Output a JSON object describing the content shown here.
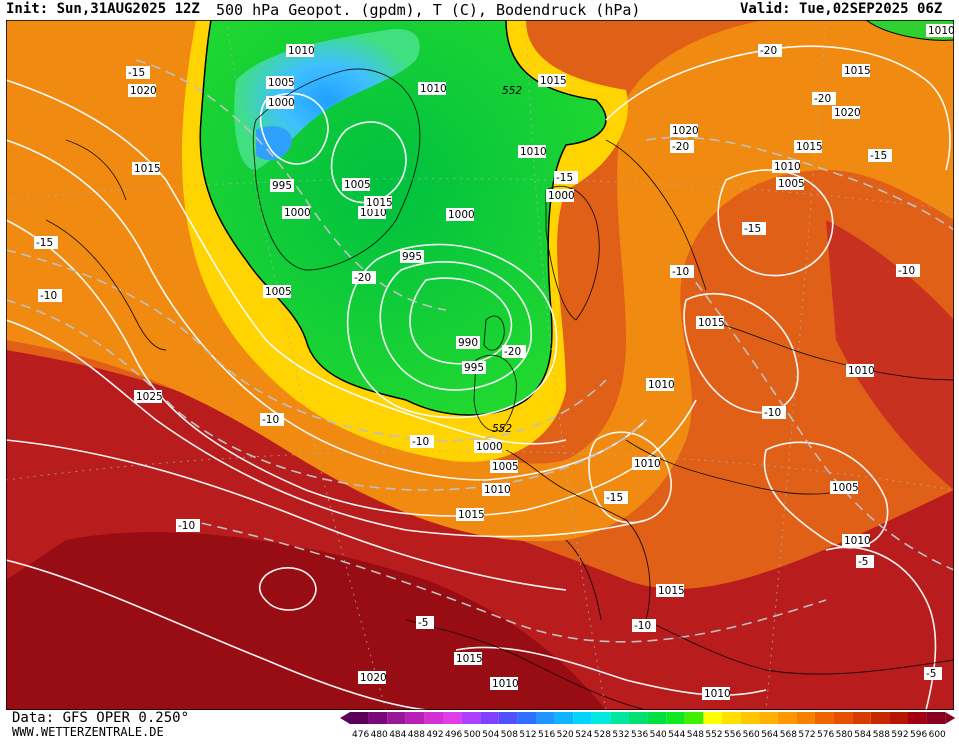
{
  "header": {
    "init": "Init: Sun,31AUG2025 12Z",
    "product": "500 hPa Geopot. (gpdm), T (C), Bodendruck (hPa)",
    "valid": "Valid: Tue,02SEP2025 06Z"
  },
  "footer": {
    "data_source": "Data: GFS OPER 0.250°",
    "website": "WWW.WETTERZENTRALE.DE"
  },
  "legend": {
    "values": [
      "476",
      "480",
      "484",
      "488",
      "492",
      "496",
      "500",
      "504",
      "508",
      "512",
      "516",
      "520",
      "524",
      "528",
      "532",
      "536",
      "540",
      "544",
      "548",
      "552",
      "556",
      "560",
      "564",
      "568",
      "572",
      "576",
      "580",
      "584",
      "588",
      "592",
      "596",
      "600"
    ],
    "colors": [
      "#5a005a",
      "#7a0a7a",
      "#99189a",
      "#b820b8",
      "#d230d2",
      "#e03ce8",
      "#b040ff",
      "#8040ff",
      "#5050ff",
      "#3070ff",
      "#2094ff",
      "#10b4ff",
      "#00d4ff",
      "#00e8e0",
      "#00e8a0",
      "#00e070",
      "#00e040",
      "#10e820",
      "#40f000",
      "#ffff00",
      "#ffe000",
      "#ffc800",
      "#ffb000",
      "#ff9800",
      "#f88000",
      "#f06400",
      "#e85000",
      "#d83c00",
      "#c82800",
      "#b81400",
      "#a00010",
      "#880020"
    ]
  },
  "map": {
    "labels_iso_pressure": [
      "1010",
      "1005",
      "1000",
      "1010",
      "1015",
      "1020",
      "1015",
      "1005",
      "1000",
      "995",
      "1010",
      "1015",
      "1000",
      "995",
      "990",
      "995",
      "1010",
      "1000",
      "1005",
      "1010",
      "1015",
      "1020",
      "1015",
      "1010",
      "1005",
      "1015",
      "1010",
      "1010",
      "1005",
      "1010",
      "1010",
      "1015",
      "1015",
      "1020",
      "1015",
      "1010",
      "1010",
      "1025",
      "1005",
      "1000",
      "1020",
      "1015",
      "1010"
    ],
    "labels_temp": [
      "-15",
      "-20",
      "-15",
      "-10",
      "-15",
      "-20",
      "-15",
      "-10",
      "-20",
      "-20",
      "-15",
      "-10",
      "-10",
      "-15",
      "-10",
      "-10",
      "-10",
      "-5",
      "-10",
      "-5",
      "-5",
      "-20"
    ],
    "labels_geopot": [
      "552",
      "552"
    ]
  }
}
